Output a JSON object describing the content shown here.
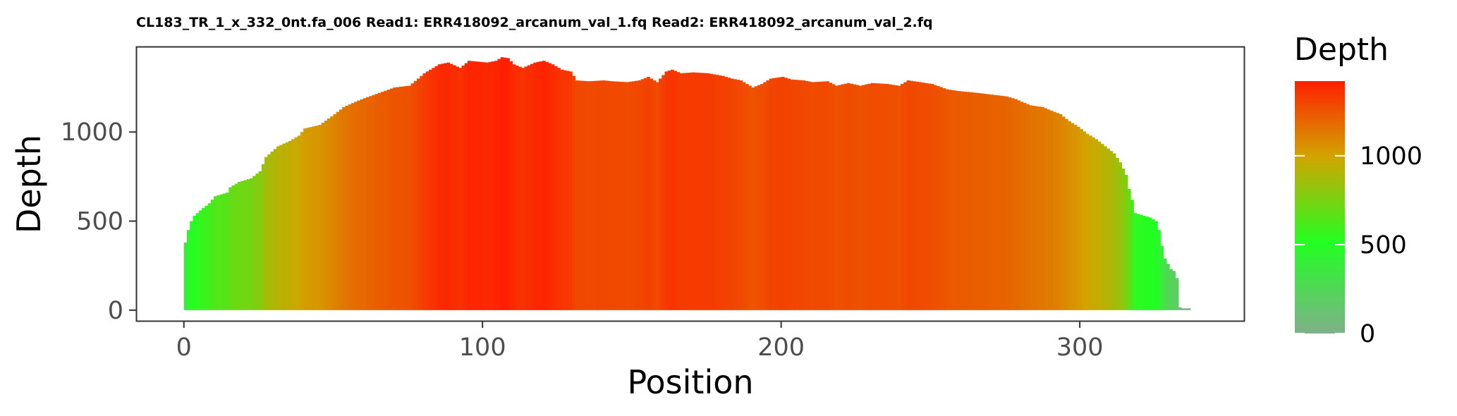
{
  "chart_data": {
    "type": "bar",
    "title": "CL183_TR_1_x_332_0nt.fa_006 Read1: ERR418092_arcanum_val_1.fq Read2: ERR418092_arcanum_val_2.fq",
    "xlabel": "Position",
    "ylabel": "Depth",
    "xlim": [
      -16,
      355
    ],
    "ylim": [
      -60,
      1480
    ],
    "x_ticks": [
      0,
      100,
      200,
      300
    ],
    "y_ticks": [
      0,
      500,
      1000
    ],
    "grid": false,
    "legend": {
      "title": "Depth",
      "position": "right",
      "type": "colorbar",
      "ticks": [
        0,
        500,
        1000
      ],
      "range": [
        0,
        1420
      ],
      "colors": [
        "#7fb08a",
        "#22ff22",
        "#d2a400",
        "#ff1f00"
      ]
    },
    "depth_profile": [
      [
        0,
        380
      ],
      [
        1,
        450
      ],
      [
        2,
        500
      ],
      [
        3,
        530
      ],
      [
        5,
        560
      ],
      [
        8,
        600
      ],
      [
        10,
        640
      ],
      [
        14,
        660
      ],
      [
        15,
        690
      ],
      [
        18,
        720
      ],
      [
        22,
        740
      ],
      [
        25,
        780
      ],
      [
        26,
        820
      ],
      [
        27,
        860
      ],
      [
        29,
        890
      ],
      [
        31,
        920
      ],
      [
        35,
        950
      ],
      [
        38,
        980
      ],
      [
        40,
        1020
      ],
      [
        45,
        1040
      ],
      [
        50,
        1100
      ],
      [
        53,
        1140
      ],
      [
        57,
        1170
      ],
      [
        60,
        1190
      ],
      [
        65,
        1220
      ],
      [
        70,
        1250
      ],
      [
        75,
        1260
      ],
      [
        78,
        1300
      ],
      [
        80,
        1330
      ],
      [
        82,
        1350
      ],
      [
        85,
        1380
      ],
      [
        88,
        1390
      ],
      [
        92,
        1360
      ],
      [
        95,
        1400
      ],
      [
        98,
        1395
      ],
      [
        101,
        1390
      ],
      [
        104,
        1400
      ],
      [
        106,
        1420
      ],
      [
        108,
        1415
      ],
      [
        110,
        1380
      ],
      [
        113,
        1360
      ],
      [
        117,
        1390
      ],
      [
        120,
        1400
      ],
      [
        123,
        1380
      ],
      [
        126,
        1350
      ],
      [
        129,
        1340
      ],
      [
        131,
        1290
      ],
      [
        135,
        1285
      ],
      [
        140,
        1290
      ],
      [
        143,
        1285
      ],
      [
        148,
        1280
      ],
      [
        152,
        1290
      ],
      [
        155,
        1310
      ],
      [
        158,
        1280
      ],
      [
        161,
        1340
      ],
      [
        163,
        1350
      ],
      [
        166,
        1330
      ],
      [
        170,
        1335
      ],
      [
        175,
        1330
      ],
      [
        180,
        1315
      ],
      [
        183,
        1300
      ],
      [
        186,
        1290
      ],
      [
        190,
        1250
      ],
      [
        193,
        1270
      ],
      [
        196,
        1300
      ],
      [
        200,
        1310
      ],
      [
        203,
        1295
      ],
      [
        207,
        1290
      ],
      [
        210,
        1280
      ],
      [
        215,
        1285
      ],
      [
        218,
        1260
      ],
      [
        222,
        1275
      ],
      [
        226,
        1260
      ],
      [
        230,
        1275
      ],
      [
        235,
        1270
      ],
      [
        239,
        1260
      ],
      [
        242,
        1290
      ],
      [
        246,
        1280
      ],
      [
        250,
        1270
      ],
      [
        255,
        1240
      ],
      [
        259,
        1230
      ],
      [
        265,
        1220
      ],
      [
        270,
        1210
      ],
      [
        275,
        1200
      ],
      [
        278,
        1185
      ],
      [
        280,
        1170
      ],
      [
        283,
        1150
      ],
      [
        287,
        1140
      ],
      [
        290,
        1120
      ],
      [
        293,
        1100
      ],
      [
        296,
        1060
      ],
      [
        299,
        1030
      ],
      [
        302,
        990
      ],
      [
        305,
        960
      ],
      [
        308,
        920
      ],
      [
        311,
        880
      ],
      [
        313,
        830
      ],
      [
        315,
        760
      ],
      [
        316,
        680
      ],
      [
        317,
        620
      ],
      [
        318,
        545
      ],
      [
        320,
        535
      ],
      [
        323,
        520
      ],
      [
        325,
        500
      ],
      [
        326,
        450
      ],
      [
        327,
        360
      ],
      [
        328,
        290
      ],
      [
        329,
        260
      ],
      [
        330,
        230
      ],
      [
        331,
        220
      ],
      [
        332,
        180
      ],
      [
        333,
        15
      ],
      [
        334,
        10
      ],
      [
        335,
        10
      ],
      [
        336,
        10
      ]
    ]
  }
}
